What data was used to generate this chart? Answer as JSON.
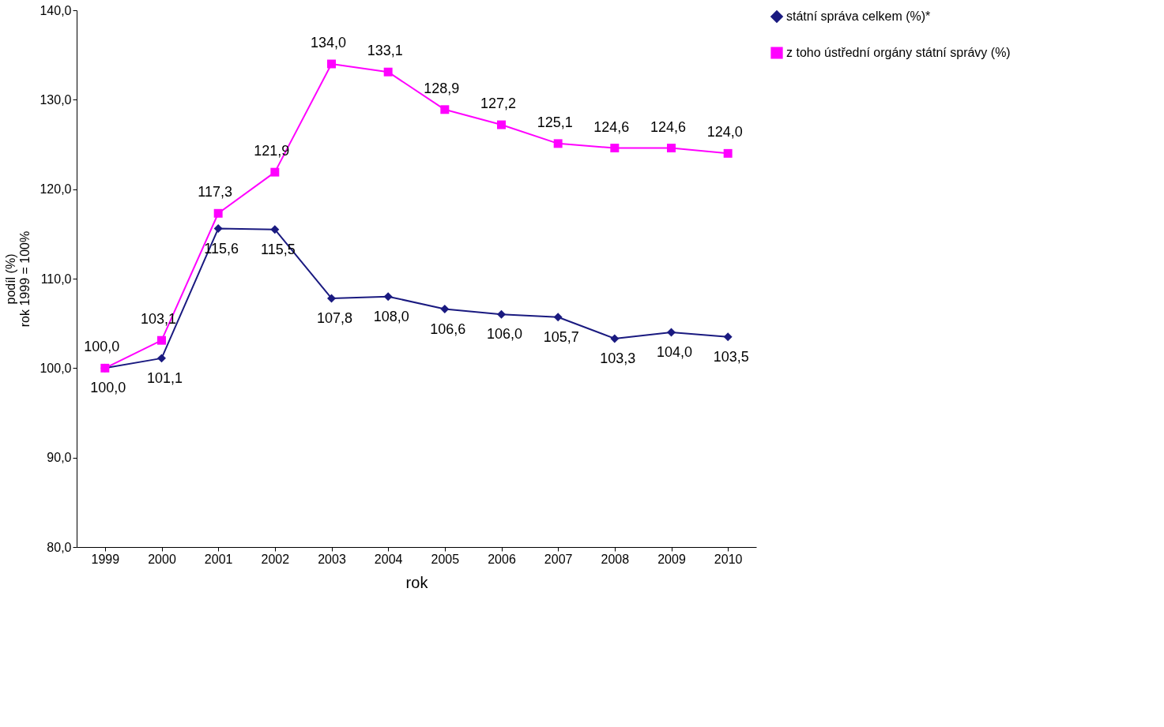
{
  "chart_data": {
    "type": "line",
    "xlabel": "rok",
    "ylabel": "podíl (%)\nrok 1999 = 100%",
    "categories": [
      "1999",
      "2000",
      "2001",
      "2002",
      "2003",
      "2004",
      "2005",
      "2006",
      "2007",
      "2008",
      "2009",
      "2010"
    ],
    "series": [
      {
        "name": "státní správa celkem (%)*",
        "color": "#1a1a80",
        "marker": "diamond",
        "values": [
          100.0,
          101.1,
          115.6,
          115.5,
          107.8,
          108.0,
          106.6,
          106.0,
          105.7,
          103.3,
          104.0,
          103.5
        ],
        "value_labels": [
          "100,0",
          "101,1",
          "115,6",
          "115,5",
          "107,8",
          "108,0",
          "106,6",
          "106,0",
          "105,7",
          "103,3",
          "104,0",
          "103,5"
        ]
      },
      {
        "name": "z toho ústřední orgány státní správy (%)",
        "color": "#ff00ff",
        "marker": "square",
        "values": [
          100.0,
          103.1,
          117.3,
          121.9,
          134.0,
          133.1,
          128.9,
          127.2,
          125.1,
          124.6,
          124.6,
          124.0
        ],
        "value_labels": [
          "100,0",
          "103,1",
          "117,3",
          "121,9",
          "134,0",
          "133,1",
          "128,9",
          "127,2",
          "125,1",
          "124,6",
          "124,6",
          "124,0"
        ]
      }
    ],
    "ylim": [
      80,
      140
    ],
    "yticks": [
      {
        "value": 80,
        "label": "80,0"
      },
      {
        "value": 90,
        "label": "90,0"
      },
      {
        "value": 100,
        "label": "100,0"
      },
      {
        "value": 110,
        "label": "110,0"
      },
      {
        "value": 120,
        "label": "120,0"
      },
      {
        "value": 130,
        "label": "130,0"
      },
      {
        "value": 140,
        "label": "140,0"
      }
    ],
    "grid": false,
    "legend": "right",
    "line_style": "solid"
  }
}
